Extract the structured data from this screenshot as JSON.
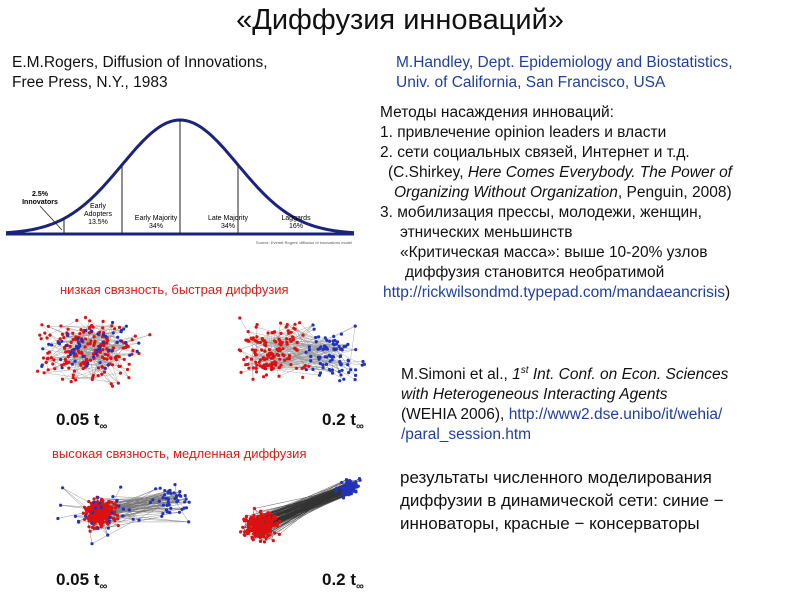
{
  "title": "«Диффузия инноваций»",
  "rogers": {
    "line1": "E.M.Rogers, Diffusion of Innovations,",
    "line2": "Free Press, N.Y., 1983"
  },
  "handley": {
    "line1": "M.Handley, Dept. Epidemiology and Biostatistics,",
    "line2": "Univ. of California, San Francisco, USA"
  },
  "methods": {
    "heading": "Методы насаждения инноваций:",
    "item1": "1. привлечение opinion leaders и власти",
    "item2": "2. сети социальных связей, Интернет и т.д.",
    "shirkey_pre": "(C.Shirkey, ",
    "shirkey_title1": "Here Comes Everybody. The Power of",
    "shirkey_title2": "Organizing Without Organization",
    "shirkey_post": ", Penguin, 2008)",
    "item3a": "3. мобилизация прессы, молодежи, женщин,",
    "item3b": "этнических меньшинств",
    "crit1": "«Критическая масса»: выше 10-20%  узлов",
    "crit2": "диффузия становится необратимой",
    "crit_url": "http://rickwilsondmd.typepad.com/mandaeancrisis",
    "crit_paren": ")"
  },
  "simoni": {
    "authors": "M.Simoni et al., ",
    "ord_num": "1",
    "ord_sup": "st",
    "conf1": " Int. Conf. on Econ. Sciences",
    "conf2": "with Heterogeneous Interacting Agents",
    "wehia": "(WEHIA 2006), ",
    "url1": "http://www2.dse.unibo/it/wehia/",
    "url2": "/paral_session.htm"
  },
  "results": {
    "line1": "результаты численного моделирования",
    "line2": "диффузии в динамической сети: синие −",
    "line3": "инноваторы, красные − консерваторы"
  },
  "networks": {
    "low_label": "низкая связность, быстрая диффузия",
    "high_label": "высокая связность, медленная диффузия",
    "t1_value": "0.05 t",
    "t2_value": "0.2 t",
    "t_sub": "∞",
    "colors": {
      "innovators": "#2233bb",
      "conservatives": "#dd1111"
    }
  },
  "chart_data": {
    "type": "area",
    "title": "",
    "xlabel": "",
    "ylabel": "",
    "categories": [
      "Innovators",
      "Early Adopters",
      "Early Majority",
      "Late Majority",
      "Laggards"
    ],
    "values": [
      2.5,
      13.5,
      34,
      34,
      16
    ],
    "labels": [
      "2.5%\nInnovators",
      "Early\nAdopters\n13.5%",
      "Early Majority\n34%",
      "Late Majority\n34%",
      "Laggards\n16%"
    ],
    "x_boundaries_sd": [
      -2,
      -1,
      0,
      1
    ],
    "xlim_sd": [
      -3,
      3
    ],
    "source": "Source: Everett Rogers' diffusion of innovations model",
    "colors": {
      "curve": "#1a237e",
      "axis": "#1a237e"
    }
  }
}
